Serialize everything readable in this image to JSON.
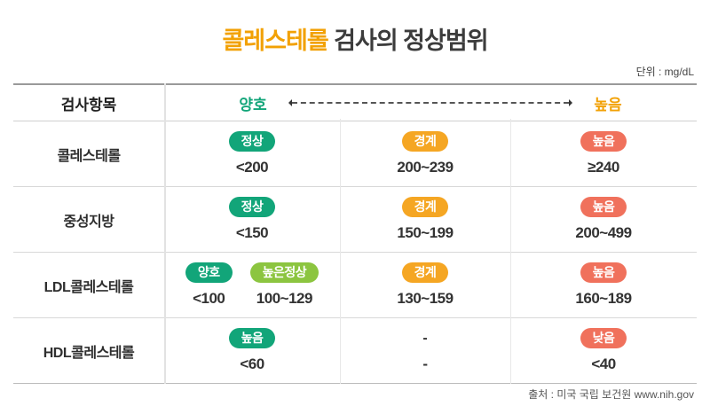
{
  "title": {
    "highlight": "콜레스테롤",
    "rest": " 검사의 정상범위"
  },
  "unit": "단위 : mg/dL",
  "source": "출처 : 미국 국립 보건원 www.nih.gov",
  "colors": {
    "green": "#12a579",
    "lightgreen": "#8cc540",
    "yellow": "#f5a623",
    "red": "#f0715c",
    "title_accent": "#f2a105",
    "header_good": "#12a579",
    "header_high": "#f2a105"
  },
  "table": {
    "header": {
      "col1": "검사항목",
      "good": "양호",
      "high": "높음"
    },
    "rows": [
      {
        "name": "콜레스테롤",
        "cells": [
          {
            "items": [
              {
                "badge": "정상",
                "color": "green",
                "value": "<200"
              }
            ]
          },
          {
            "items": [
              {
                "badge": "경계",
                "color": "yellow",
                "value": "200~239"
              }
            ]
          },
          {
            "items": [
              {
                "badge": "높음",
                "color": "red",
                "value": "≥240"
              }
            ]
          }
        ]
      },
      {
        "name": "중성지방",
        "cells": [
          {
            "items": [
              {
                "badge": "정상",
                "color": "green",
                "value": "<150"
              }
            ]
          },
          {
            "items": [
              {
                "badge": "경계",
                "color": "yellow",
                "value": "150~199"
              }
            ]
          },
          {
            "items": [
              {
                "badge": "높음",
                "color": "red",
                "value": "200~499"
              }
            ]
          }
        ]
      },
      {
        "name": "LDL콜레스테롤",
        "cells": [
          {
            "items": [
              {
                "badge": "양호",
                "color": "green",
                "value": "<100"
              },
              {
                "badge": "높은정상",
                "color": "lightgreen",
                "value": "100~129"
              }
            ]
          },
          {
            "items": [
              {
                "badge": "경계",
                "color": "yellow",
                "value": "130~159"
              }
            ]
          },
          {
            "items": [
              {
                "badge": "높음",
                "color": "red",
                "value": "160~189"
              }
            ]
          }
        ]
      },
      {
        "name": "HDL콜레스테롤",
        "cells": [
          {
            "items": [
              {
                "badge": "높음",
                "color": "green",
                "value": "<60"
              }
            ]
          },
          {
            "items": [
              {
                "badge": "-",
                "color": null,
                "value": "-"
              }
            ]
          },
          {
            "items": [
              {
                "badge": "낮음",
                "color": "red",
                "value": "<40"
              }
            ]
          }
        ]
      }
    ]
  },
  "chart_data": {
    "type": "table",
    "title": "콜레스테롤 검사의 정상범위",
    "unit": "mg/dL",
    "columns": [
      "검사항목",
      "양호",
      "경계",
      "높음"
    ],
    "rows": [
      [
        "콜레스테롤",
        "정상 <200",
        "경계 200~239",
        "높음 ≥240"
      ],
      [
        "중성지방",
        "정상 <150",
        "경계 150~199",
        "높음 200~499"
      ],
      [
        "LDL콜레스테롤",
        "양호 <100 / 높은정상 100~129",
        "경계 130~159",
        "높음 160~189"
      ],
      [
        "HDL콜레스테롤",
        "높음 <60",
        "-",
        "낮음 <40"
      ]
    ],
    "source": "출처 : 미국 국립 보건원 www.nih.gov"
  }
}
